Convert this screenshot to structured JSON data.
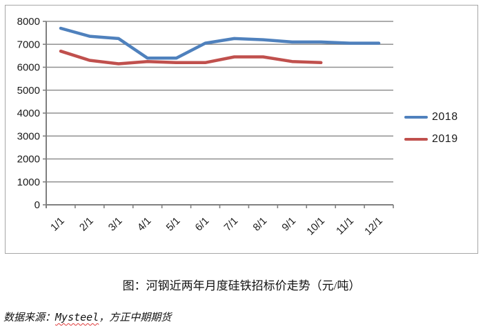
{
  "figure": {
    "caption": "图：河钢近两年月度硅铁招标价走势（元/吨）",
    "source_prefix": "数据来源：",
    "source_brand": "Mysteel",
    "source_suffix": "，方正中期期货"
  },
  "legend": {
    "items": [
      {
        "label": "2018",
        "color": "#4F81BD"
      },
      {
        "label": "2019",
        "color": "#C0504D"
      }
    ]
  },
  "chart_data": {
    "type": "line",
    "title": "图：河钢近两年月度硅铁招标价走势（元/吨）",
    "categories": [
      "1/1",
      "2/1",
      "3/1",
      "4/1",
      "5/1",
      "6/1",
      "7/1",
      "8/1",
      "9/1",
      "10/1",
      "11/1",
      "12/1"
    ],
    "series": [
      {
        "name": "2018",
        "color": "#4F81BD",
        "values": [
          7700,
          7350,
          7250,
          6400,
          6400,
          7050,
          7250,
          7200,
          7100,
          7100,
          7050,
          7050
        ]
      },
      {
        "name": "2019",
        "color": "#C0504D",
        "values": [
          6700,
          6300,
          6150,
          6250,
          6200,
          6200,
          6450,
          6450,
          6250,
          6200
        ]
      }
    ],
    "xlabel": "",
    "ylabel": "",
    "ylim": [
      0,
      8000
    ],
    "yticks": [
      0,
      1000,
      2000,
      3000,
      4000,
      5000,
      6000,
      7000,
      8000
    ],
    "grid": true,
    "legend_position": "right",
    "colors": {
      "gridline": "#909090",
      "axis": "#7f7f7f",
      "tick_label": "#1a1a1a"
    }
  }
}
